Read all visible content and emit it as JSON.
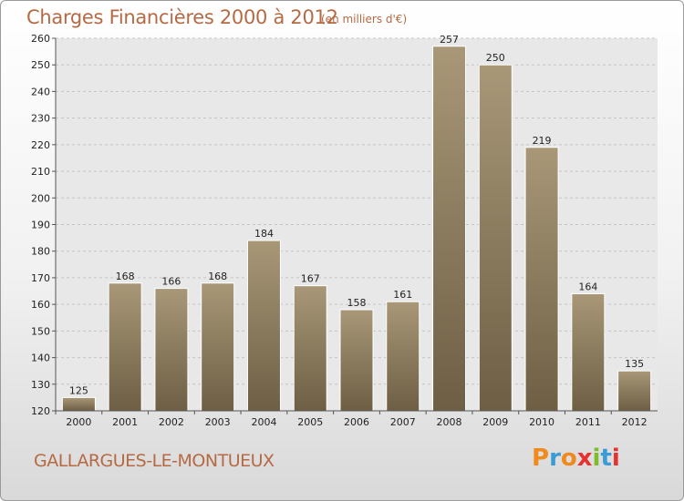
{
  "header": {
    "title": "Charges Financières 2000 à 2012",
    "subtitle": "(en milliers d'€)"
  },
  "footer": {
    "city": "GALLARGUES-LE-MONTUEUX",
    "logo_text": "Proxiti",
    "logo_colors": [
      "#f08a1c",
      "#3a9bd6",
      "#f08a1c",
      "#e8312f",
      "#7cbc2e",
      "#3a9bd6",
      "#e8312f"
    ]
  },
  "chart_data": {
    "type": "bar",
    "title": "Charges Financières 2000 à 2012",
    "subtitle": "(en milliers d'€)",
    "xlabel": "",
    "ylabel": "",
    "categories": [
      "2000",
      "2001",
      "2002",
      "2003",
      "2004",
      "2005",
      "2006",
      "2007",
      "2008",
      "2009",
      "2010",
      "2011",
      "2012"
    ],
    "values": [
      125,
      168,
      166,
      168,
      184,
      167,
      158,
      161,
      257,
      250,
      219,
      164,
      135
    ],
    "ylim": [
      120,
      260
    ],
    "yticks": [
      120,
      130,
      140,
      150,
      160,
      170,
      180,
      190,
      200,
      210,
      220,
      230,
      240,
      250,
      260
    ],
    "grid": true,
    "bar_color_top": "#a89878",
    "bar_color_bottom": "#6e5e44"
  }
}
